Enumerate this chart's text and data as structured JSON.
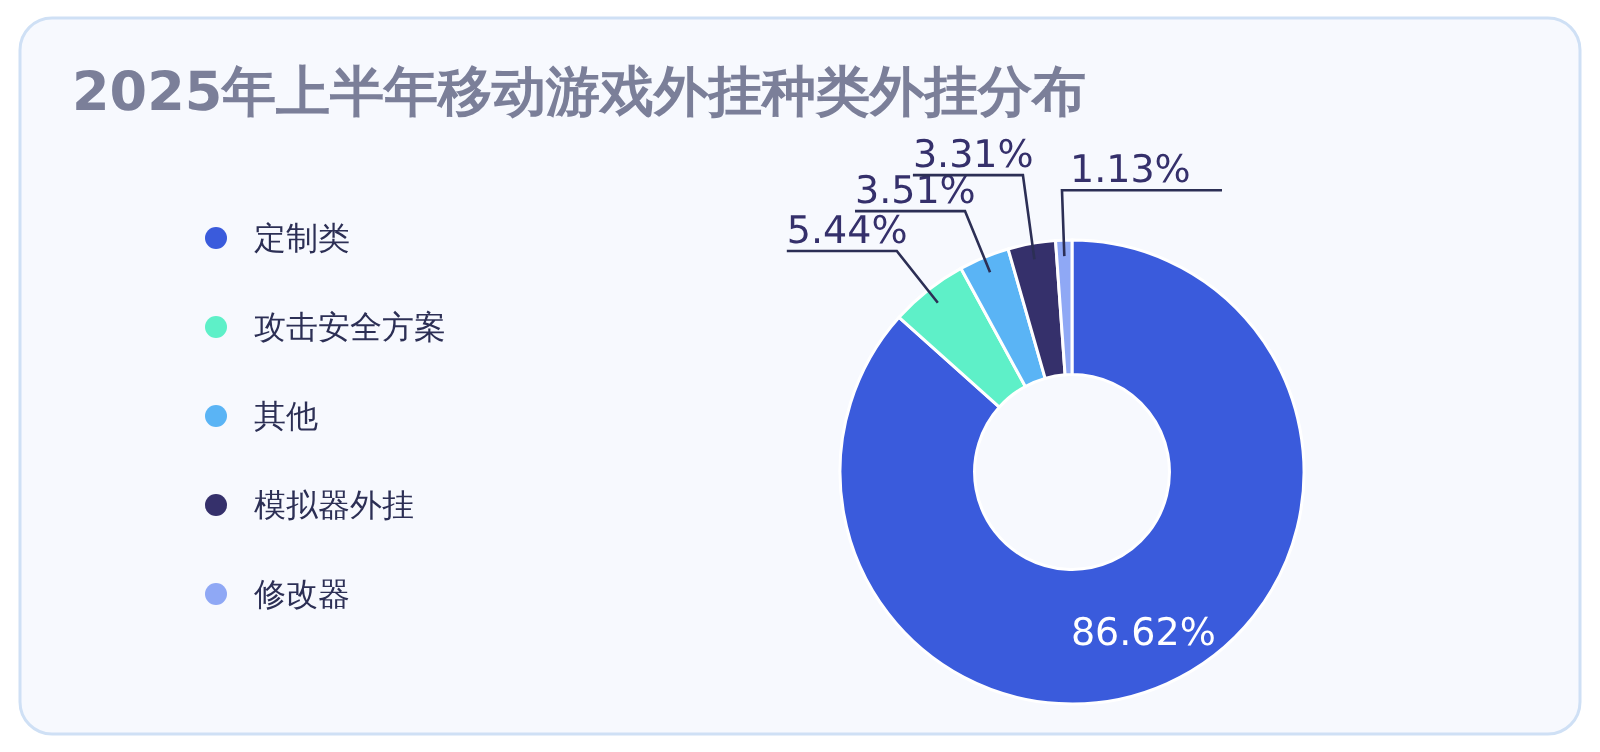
{
  "chart_data": {
    "type": "donut",
    "title": "2025年上半年移动游戏外挂种类外挂分布",
    "categories": [
      "定制类",
      "攻击安全方案",
      "其他",
      "模拟器外挂",
      "修改器"
    ],
    "values": [
      86.62,
      5.44,
      3.51,
      3.31,
      1.13
    ],
    "value_labels": [
      "86.62%",
      "5.44%",
      "3.51%",
      "3.31%",
      "1.13%"
    ],
    "colors": [
      "#3a5bdc",
      "#5ef0c8",
      "#5ab4f5",
      "#35306b",
      "#8fa8f5"
    ],
    "legend": "left"
  }
}
